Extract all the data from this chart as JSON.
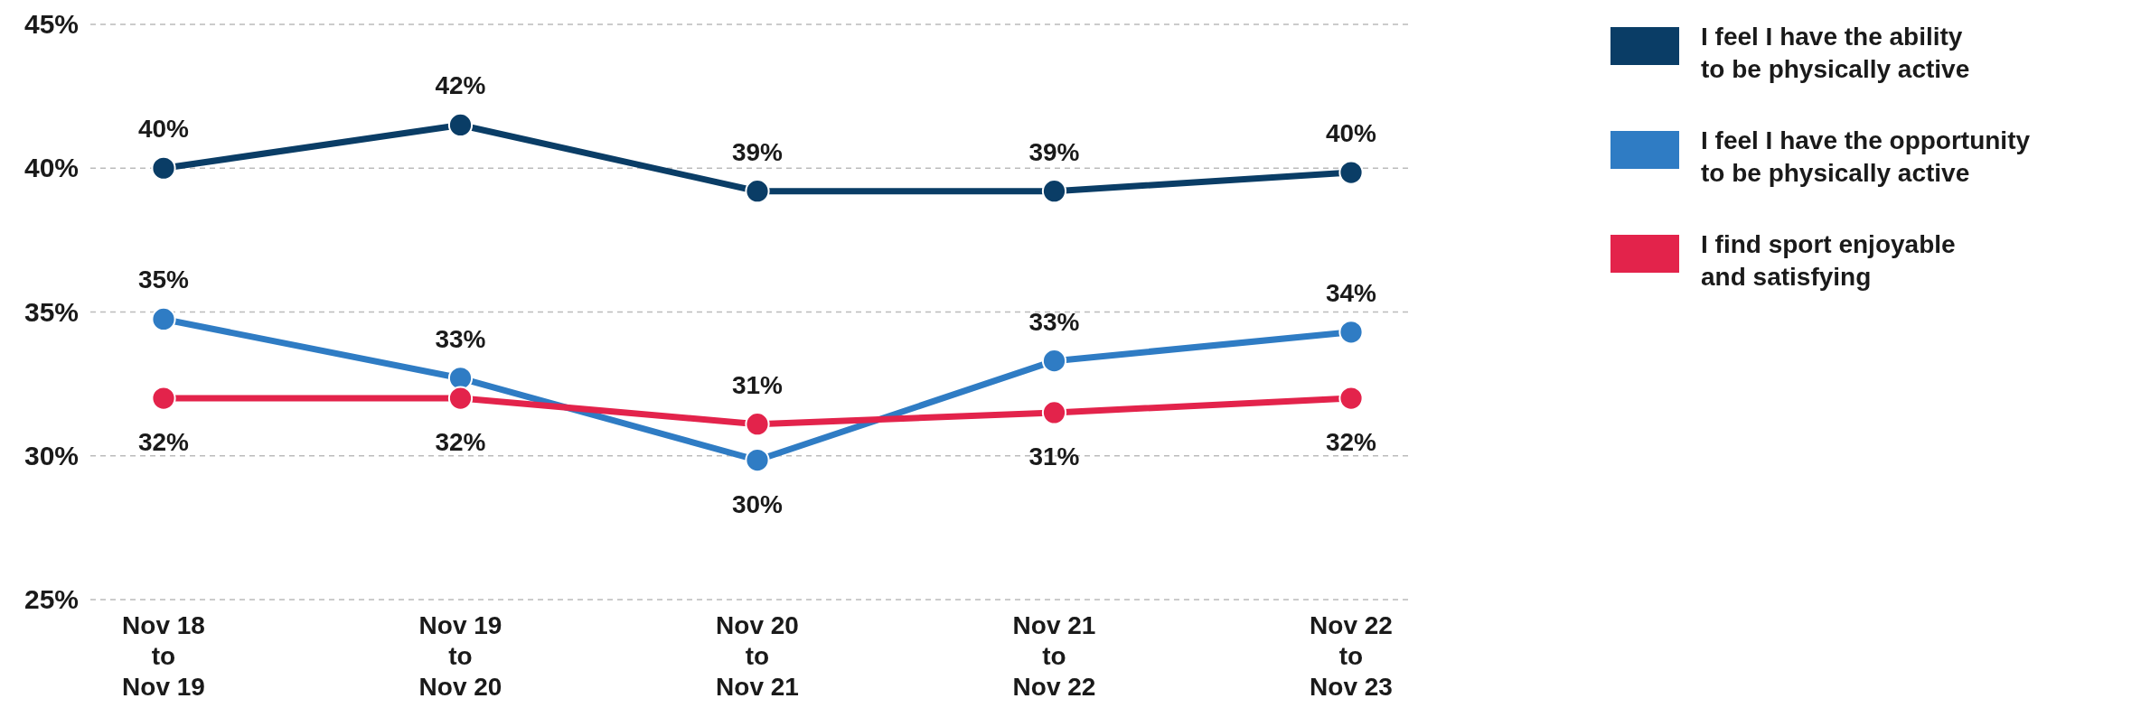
{
  "chart_data": {
    "type": "line",
    "categories": [
      "Nov 18\nto\nNov 19",
      "Nov 19\nto\nNov 20",
      "Nov 20\nto\nNov 21",
      "Nov 21\nto\nNov 22",
      "Nov 22\nto\nNov 23"
    ],
    "series": [
      {
        "name": "I feel I have the ability\nto be physically active",
        "color": "#0a3d66",
        "values": [
          40.0,
          41.5,
          39.2,
          39.2,
          39.85
        ],
        "value_labels": [
          "40%",
          "42%",
          "39%",
          "39%",
          "40%"
        ]
      },
      {
        "name": "I feel I have the opportunity\nto be physically active",
        "color": "#2f7cc4",
        "values": [
          34.75,
          32.7,
          29.85,
          33.3,
          34.3
        ],
        "value_labels": [
          "35%",
          "33%",
          "30%",
          "33%",
          "34%"
        ]
      },
      {
        "name": "I find sport enjoyable\nand satisfying",
        "color": "#e3234b",
        "values": [
          32.0,
          32.0,
          31.1,
          31.5,
          32.0
        ],
        "value_labels": [
          "32%",
          "32%",
          "31%",
          "31%",
          "32%"
        ]
      }
    ],
    "ylim": [
      25,
      45
    ],
    "yticks": [
      {
        "value": 25,
        "label": "25%"
      },
      {
        "value": 30,
        "label": "30%"
      },
      {
        "value": 35,
        "label": "35%"
      },
      {
        "value": 40,
        "label": "40%"
      },
      {
        "value": 45,
        "label": "45%"
      }
    ],
    "grid": "y",
    "legend": "right",
    "marker": "circle",
    "line_style": "solid"
  }
}
